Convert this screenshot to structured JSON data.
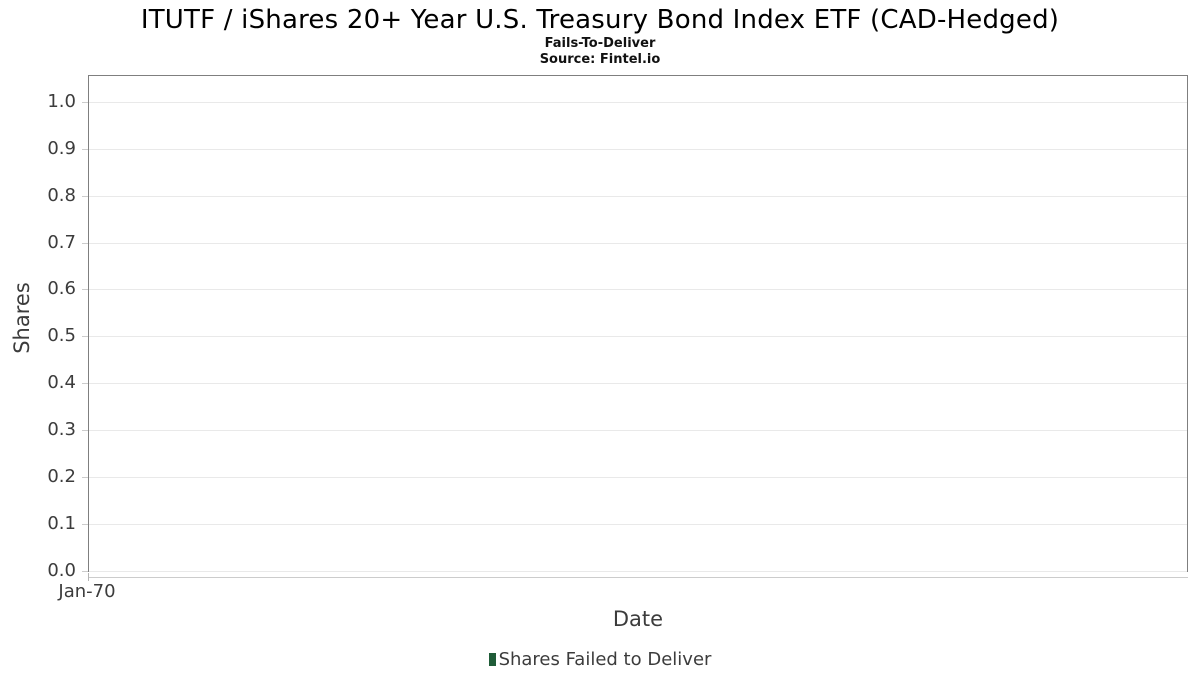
{
  "header": {
    "title": "ITUTF / iShares 20+ Year U.S. Treasury Bond Index ETF (CAD-Hedged)",
    "subtitle": "Fails-To-Deliver",
    "source": "Source: Fintel.io"
  },
  "chart_data": {
    "type": "bar",
    "title": "ITUTF / iShares 20+ Year U.S. Treasury Bond Index ETF (CAD-Hedged)",
    "subtitle": "Fails-To-Deliver",
    "source": "Source: Fintel.io",
    "xlabel": "Date",
    "ylabel": "Shares",
    "x_tick_labels": [
      "Jan-70"
    ],
    "y_ticks": [
      0.0,
      0.1,
      0.2,
      0.3,
      0.4,
      0.5,
      0.6,
      0.7,
      0.8,
      0.9,
      1.0
    ],
    "y_tick_labels": [
      "0.0",
      "0.1",
      "0.2",
      "0.3",
      "0.4",
      "0.5",
      "0.6",
      "0.7",
      "0.8",
      "0.9",
      "1.0"
    ],
    "ylim": [
      0,
      1.055
    ],
    "grid": true,
    "legend_position": "bottom",
    "series": [
      {
        "name": "Shares Failed to Deliver",
        "color": "#1f5c38",
        "x": [],
        "values": []
      }
    ]
  },
  "legend": {
    "label": "Shares Failed to Deliver",
    "marker_color": "#1f5c38"
  },
  "colors": {
    "background": "#ffffff",
    "plot_border": "#7f7f7f",
    "gridline": "#e9e9e9",
    "tick_mark": "#cccccc",
    "title_text": "#000000",
    "label_text": "#3c3c3c",
    "legend_green": "#1f5c38"
  }
}
